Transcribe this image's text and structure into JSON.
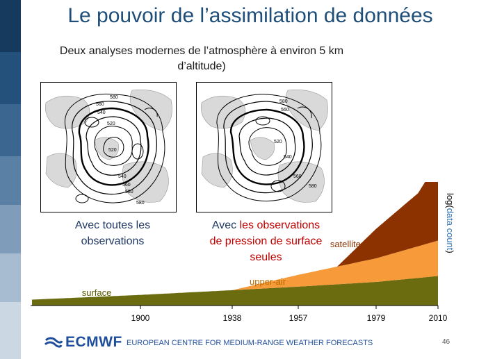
{
  "title": "Le pouvoir de l’assimilation de données",
  "subtitle_line1": "Deux analyses modernes de l’atmosphère à environ 5 km",
  "subtitle_line2": "d’altitude)",
  "map_left": {
    "labels": [
      "580",
      "560",
      "540",
      "520",
      "520",
      "540",
      "560",
      "580",
      "580"
    ]
  },
  "map_right": {
    "labels": [
      "580",
      "560",
      "520",
      "540",
      "560",
      "580"
    ]
  },
  "caption_left": {
    "line1": "Avec toutes les",
    "line2": "observations"
  },
  "caption_right": {
    "prefix": "Avec ",
    "red1": "les observations",
    "red2": "de pression de surface",
    "line3": "seules"
  },
  "chart_data": {
    "type": "area",
    "title": "",
    "ylabel_prefix": "log(",
    "ylabel_inner": "data count",
    "ylabel_suffix": ")",
    "x_ticks": [
      1900,
      1938,
      1957,
      1979,
      2010
    ],
    "series": [
      {
        "name": "surface",
        "color": "#6b6b10",
        "x": [
          1850,
          1900,
          1938,
          1957,
          1979,
          2010
        ],
        "values": [
          0.05,
          0.09,
          0.13,
          0.16,
          0.2,
          0.25
        ]
      },
      {
        "name": "upper-air",
        "color": "#f79a3a",
        "x": [
          1938,
          1957,
          1979,
          2010
        ],
        "values": [
          0.0,
          0.1,
          0.2,
          0.3
        ]
      },
      {
        "name": "satellites",
        "color": "#8b3200",
        "x": [
          1968,
          1979,
          2000,
          2010
        ],
        "values": [
          0.0,
          0.25,
          0.45,
          0.67
        ]
      }
    ]
  },
  "footer": {
    "logo_text": "ECMWF",
    "org_name": "EUROPEAN CENTRE FOR MEDIUM-RANGE WEATHER FORECASTS",
    "page": "46"
  },
  "colors": {
    "title": "#1f4e79",
    "accent_red": "#c00000",
    "brand_blue": "#1f4e9a"
  }
}
